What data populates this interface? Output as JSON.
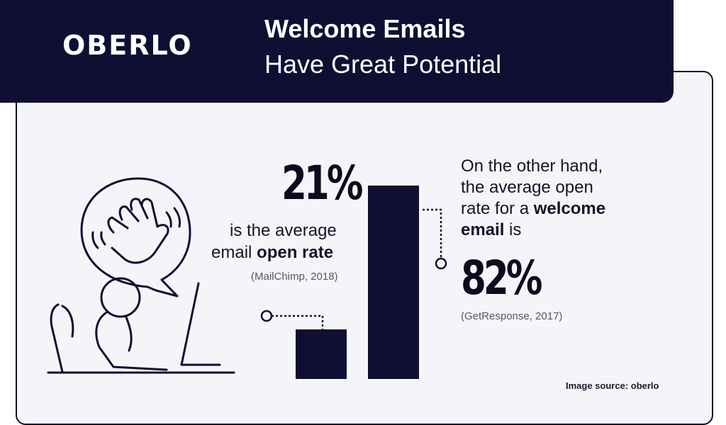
{
  "header": {
    "logo": "OBERLO",
    "title_line1": "Welcome Emails",
    "title_line2": "Have Great Potential"
  },
  "left_stat": {
    "value": "21%",
    "line1": "is the average",
    "line2_plain": "email",
    "line2_bold": "open rate",
    "source": "(MailChimp, 2018)"
  },
  "right_stat": {
    "line1": "On the other hand,",
    "line2": "the average open",
    "line3_plain": "rate for a",
    "line3_bold": "welcome",
    "line4_bold": "email",
    "line4_plain": "is",
    "value": "82%",
    "source": "(GetResponse, 2017)"
  },
  "credit": "Image source: oberlo",
  "colors": {
    "navy": "#0f0f33",
    "background": "#f5f5f9",
    "bar": "#0f0f33"
  },
  "chart_data": {
    "type": "bar",
    "categories": [
      "Email",
      "Welcome email"
    ],
    "values": [
      21,
      82
    ],
    "title": "",
    "xlabel": "",
    "ylabel": "",
    "ylim": [
      0,
      100
    ]
  }
}
